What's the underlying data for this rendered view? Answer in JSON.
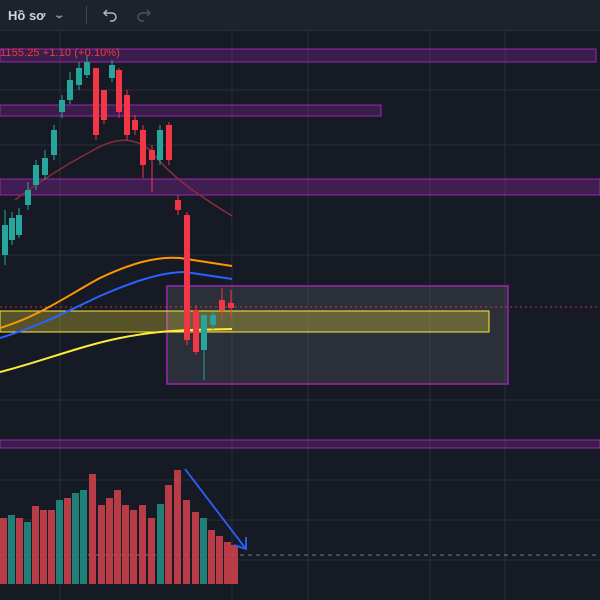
{
  "toolbar": {
    "profile_label": "Hồ sơ",
    "profile_icon": "chevron-down-icon",
    "undo_icon": "undo-icon",
    "redo_icon": "redo-icon"
  },
  "readout": {
    "text": "1155.25 +1.10 (+0.10%)",
    "color": "#f23645"
  },
  "colors": {
    "background": "#161a25",
    "up_candle": "#26a69a",
    "down_candle": "#f23645",
    "zone_purple": "#9c27b0",
    "zone_yellow": "#ffeb3b",
    "ma_orange": "#ff9800",
    "ma_blue": "#2962ff",
    "ma_yellow": "#ffeb3b",
    "ma_dark_red": "#8b2c3c",
    "arrow": "#2962ff"
  }
}
